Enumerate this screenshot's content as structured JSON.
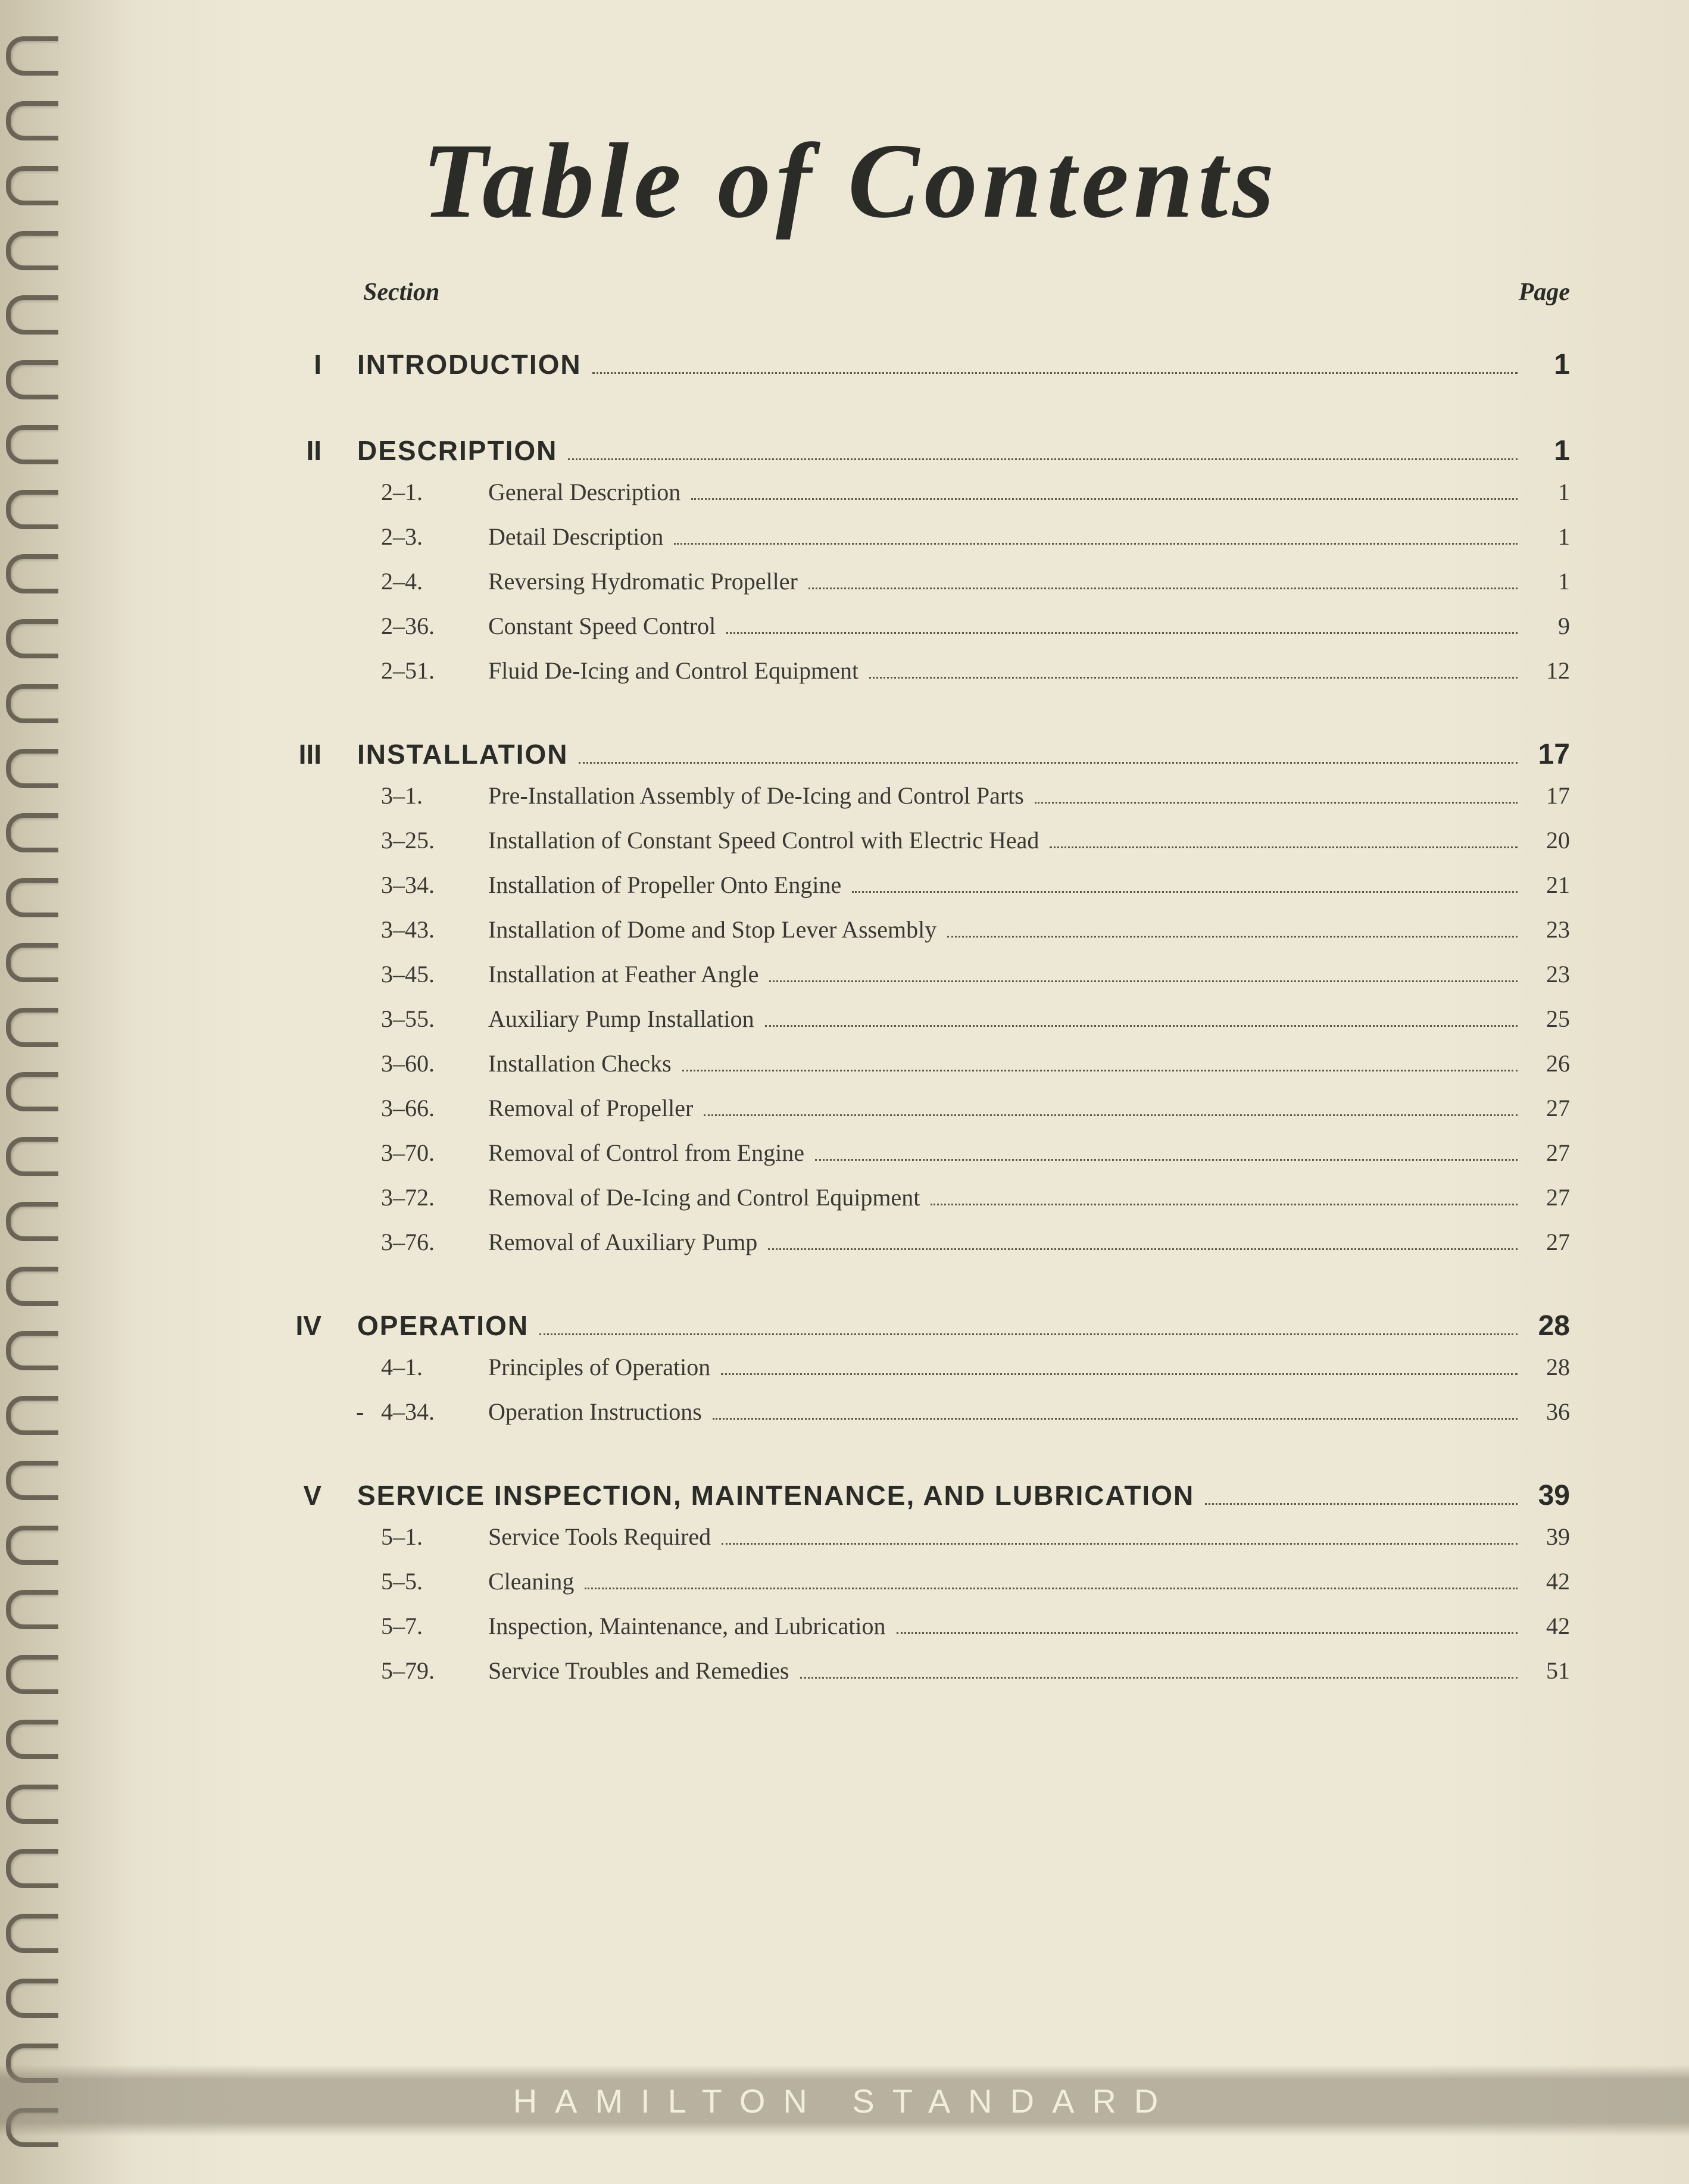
{
  "title": "Table of Contents",
  "header_left": "Section",
  "header_right": "Page",
  "footer": "HAMILTON STANDARD",
  "sections": [
    {
      "num": "I",
      "title": "INTRODUCTION",
      "page": "1",
      "items": []
    },
    {
      "num": "II",
      "title": "DESCRIPTION",
      "page": "1",
      "items": [
        {
          "num": "2–1.",
          "title": "General Description",
          "page": "1"
        },
        {
          "num": "2–3.",
          "title": "Detail Description",
          "page": "1"
        },
        {
          "num": "2–4.",
          "title": "Reversing Hydromatic Propeller",
          "page": "1"
        },
        {
          "num": "2–36.",
          "title": "Constant Speed Control",
          "page": "9"
        },
        {
          "num": "2–51.",
          "title": "Fluid De-Icing and Control Equipment",
          "page": "12"
        }
      ]
    },
    {
      "num": "III",
      "title": "INSTALLATION",
      "page": "17",
      "items": [
        {
          "num": "3–1.",
          "title": "Pre-Installation Assembly of De-Icing and Control Parts",
          "page": "17"
        },
        {
          "num": "3–25.",
          "title": "Installation of Constant Speed Control with Electric Head",
          "page": "20"
        },
        {
          "num": "3–34.",
          "title": "Installation of Propeller Onto Engine",
          "page": "21"
        },
        {
          "num": "3–43.",
          "title": "Installation of Dome and Stop Lever Assembly",
          "page": "23"
        },
        {
          "num": "3–45.",
          "title": "Installation at Feather Angle",
          "page": "23"
        },
        {
          "num": "3–55.",
          "title": "Auxiliary Pump Installation",
          "page": "25"
        },
        {
          "num": "3–60.",
          "title": "Installation Checks",
          "page": "26"
        },
        {
          "num": "3–66.",
          "title": "Removal of Propeller",
          "page": "27"
        },
        {
          "num": "3–70.",
          "title": "Removal of Control from Engine",
          "page": "27"
        },
        {
          "num": "3–72.",
          "title": "Removal of De-Icing and Control Equipment",
          "page": "27"
        },
        {
          "num": "3–76.",
          "title": "Removal of Auxiliary Pump",
          "page": "27"
        }
      ]
    },
    {
      "num": "IV",
      "title": "OPERATION",
      "page": "28",
      "items": [
        {
          "num": "4–1.",
          "title": "Principles of Operation",
          "page": "28"
        },
        {
          "num": "4–34.",
          "title": "Operation Instructions",
          "page": "36",
          "dash_prefix": true
        }
      ]
    },
    {
      "num": "V",
      "title": "SERVICE INSPECTION, MAINTENANCE, AND LUBRICATION",
      "page": "39",
      "items": [
        {
          "num": "5–1.",
          "title": "Service Tools Required",
          "page": "39"
        },
        {
          "num": "5–5.",
          "title": "Cleaning",
          "page": "42"
        },
        {
          "num": "5–7.",
          "title": "Inspection, Maintenance, and Lubrication",
          "page": "42"
        },
        {
          "num": "5–79.",
          "title": "Service Troubles and Remedies",
          "page": "51"
        }
      ]
    }
  ]
}
